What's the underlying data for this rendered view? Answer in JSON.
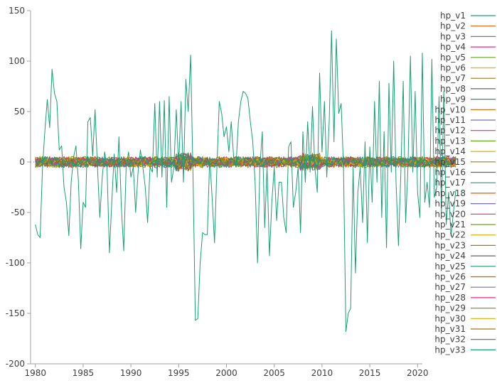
{
  "chart_data": {
    "type": "line",
    "title": "",
    "xlabel": "",
    "ylabel": "",
    "xlim": [
      1979.5,
      2020.5
    ],
    "ylim": [
      -200,
      150
    ],
    "x_ticks": [
      1980,
      1985,
      1990,
      1995,
      2000,
      2005,
      2010,
      2015,
      2020
    ],
    "y_ticks": [
      150,
      100,
      50,
      0,
      -50,
      -100,
      -150,
      -200
    ],
    "zero_line": true,
    "legend_position": "right",
    "x_start": 1980.0,
    "x_step": 0.25,
    "series_names": [
      "hp_v1",
      "hp_v2",
      "hp_v3",
      "hp_v4",
      "hp_v5",
      "hp_v6",
      "hp_v7",
      "hp_v8",
      "hp_v9",
      "hp_v10",
      "hp_v11",
      "hp_v12",
      "hp_v13",
      "hp_v14",
      "hp_v15",
      "hp_v16",
      "hp_v17",
      "hp_v18",
      "hp_v19",
      "hp_v20",
      "hp_v21",
      "hp_v22",
      "hp_v23",
      "hp_v24",
      "hp_v25",
      "hp_v26",
      "hp_v27",
      "hp_v28",
      "hp_v29",
      "hp_v30",
      "hp_v31",
      "hp_v32",
      "hp_v33"
    ],
    "series_colors": [
      "#1b9e77",
      "#d95f02",
      "#7570b3",
      "#e7298a",
      "#66a61e",
      "#e6ab02",
      "#a6761d",
      "#666666",
      "#1b9e77",
      "#d95f02",
      "#7570b3",
      "#e7298a",
      "#66a61e",
      "#e6ab02",
      "#a6761d",
      "#666666",
      "#1b9e77",
      "#d95f02",
      "#7570b3",
      "#e7298a",
      "#66a61e",
      "#e6ab02",
      "#a6761d",
      "#666666",
      "#1b9e77",
      "#d95f02",
      "#7570b3",
      "#e7298a",
      "#66a61e",
      "#e6ab02",
      "#a6761d",
      "#666666",
      "#1b9e77"
    ],
    "main_series": {
      "name": "hp_v17",
      "values": [
        -62,
        -72,
        -75,
        -5,
        32,
        62,
        34,
        92,
        68,
        60,
        12,
        16,
        -25,
        -40,
        -73,
        -20,
        5,
        16,
        -18,
        -86,
        -40,
        -45,
        40,
        44,
        6,
        52,
        -5,
        -55,
        -15,
        10,
        -5,
        -90,
        -40,
        8,
        -30,
        25,
        -45,
        -88,
        -5,
        10,
        -15,
        -5,
        -50,
        -10,
        12,
        -5,
        -25,
        -60,
        -5,
        -10,
        58,
        -15,
        60,
        -15,
        61,
        -45,
        65,
        -20,
        -5,
        52,
        -5,
        60,
        -20,
        82,
        50,
        106,
        -15,
        -157,
        -155,
        -100,
        -70,
        -72,
        -72,
        5,
        -35,
        -80,
        -5,
        60,
        48,
        25,
        35,
        10,
        40,
        5,
        -5,
        40,
        60,
        70,
        68,
        63,
        40,
        20,
        -20,
        -100,
        -5,
        30,
        -65,
        -5,
        -93,
        -40,
        -5,
        -58,
        -20,
        -20,
        -55,
        -70,
        15,
        20,
        -45,
        -30,
        -5,
        -70,
        30,
        -20,
        40,
        -10,
        55,
        -5,
        -30,
        88,
        10,
        60,
        -15,
        40,
        130,
        20,
        122,
        48,
        58,
        -5,
        -168,
        -150,
        -145,
        -5,
        -110,
        -30,
        -5,
        -60,
        20,
        -80,
        15,
        -40,
        60,
        -20,
        80,
        -55,
        30,
        -85,
        78,
        -10,
        100,
        -20,
        -83,
        -10,
        80,
        -60,
        -5,
        105,
        -10,
        70,
        -30,
        -55,
        108,
        -40,
        -20,
        -45,
        102,
        -35,
        -25,
        65,
        -50,
        70,
        -62,
        -30,
        -73,
        -50,
        -28
      ]
    },
    "noise_amplitude": 4.5
  }
}
